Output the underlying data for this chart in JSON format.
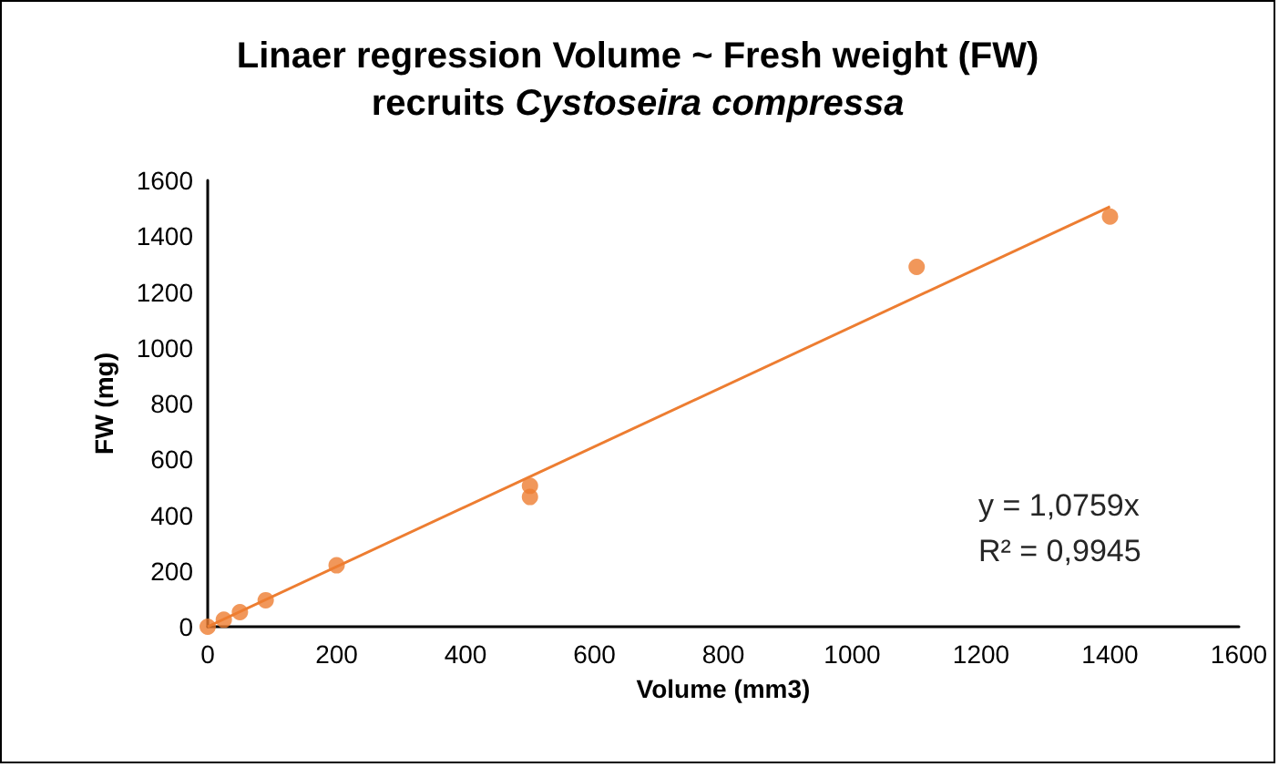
{
  "chart_data": {
    "type": "scatter",
    "title": "Linaer regression Volume ~ Fresh weight (FW)\nrecruits Cystoseira compressa",
    "xlabel": "Volume (mm3)",
    "ylabel": "FW (mg)",
    "xlim": [
      0,
      1600
    ],
    "xticks": [
      0,
      200,
      400,
      600,
      800,
      1000,
      1200,
      1400,
      1600
    ],
    "ylim": [
      0,
      1600
    ],
    "yticks": [
      0,
      200,
      400,
      600,
      800,
      1000,
      1200,
      1400,
      1600
    ],
    "grid": false,
    "marker": "circle",
    "series": [
      {
        "color": "#ed7d31",
        "x": [
          0,
          25,
          50,
          90,
          200,
          500,
          500,
          1100,
          1400
        ],
        "values": [
          0,
          25,
          52,
          95,
          220,
          505,
          465,
          1290,
          1470
        ]
      },
      {
        "type": "line",
        "color": "#ed7d31",
        "marker": "none",
        "x": [
          0,
          1400
        ],
        "values": [
          0,
          1506
        ]
      }
    ],
    "annotations": [
      "y = 1,0759x",
      "R² = 0,9945"
    ]
  }
}
